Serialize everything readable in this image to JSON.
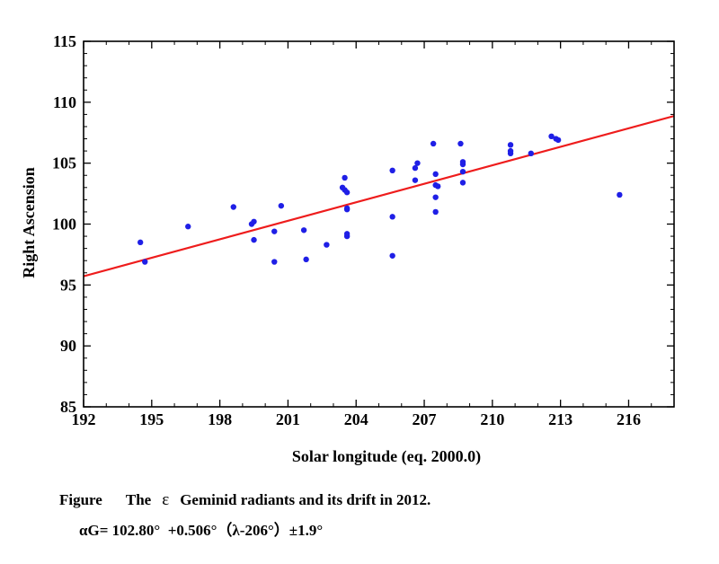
{
  "chart_data": {
    "type": "scatter",
    "title": "",
    "xlabel": "Solar longitude (eq. 2000.0)",
    "ylabel": "Right Ascension",
    "xlim": [
      192,
      218
    ],
    "ylim": [
      85,
      115
    ],
    "xticks": [
      192,
      195,
      198,
      201,
      204,
      207,
      210,
      213,
      216
    ],
    "yticks": [
      85,
      90,
      95,
      100,
      105,
      110,
      115
    ],
    "grid": false,
    "colors": {
      "points": "#1f1fe6",
      "fit": "#ee1c1c"
    },
    "series": [
      {
        "name": "ε Geminid radiants",
        "type": "scatter",
        "points": [
          [
            194.5,
            98.5
          ],
          [
            194.7,
            96.9
          ],
          [
            196.6,
            99.8
          ],
          [
            198.6,
            101.4
          ],
          [
            199.4,
            100.0
          ],
          [
            199.5,
            100.2
          ],
          [
            199.5,
            98.7
          ],
          [
            200.4,
            99.4
          ],
          [
            200.4,
            96.9
          ],
          [
            200.7,
            101.5
          ],
          [
            201.7,
            99.5
          ],
          [
            201.8,
            97.1
          ],
          [
            202.7,
            98.3
          ],
          [
            203.4,
            103.0
          ],
          [
            203.5,
            103.8
          ],
          [
            203.5,
            102.8
          ],
          [
            203.6,
            102.6
          ],
          [
            203.6,
            101.2
          ],
          [
            203.6,
            101.3
          ],
          [
            203.6,
            99.0
          ],
          [
            203.6,
            99.2
          ],
          [
            205.6,
            104.4
          ],
          [
            205.6,
            100.6
          ],
          [
            205.6,
            97.4
          ],
          [
            206.6,
            104.6
          ],
          [
            206.7,
            105.0
          ],
          [
            206.6,
            103.6
          ],
          [
            207.4,
            106.6
          ],
          [
            207.5,
            104.1
          ],
          [
            207.5,
            103.2
          ],
          [
            207.6,
            103.1
          ],
          [
            207.5,
            102.2
          ],
          [
            207.5,
            101.0
          ],
          [
            208.6,
            106.6
          ],
          [
            208.7,
            105.1
          ],
          [
            208.7,
            104.9
          ],
          [
            208.7,
            104.3
          ],
          [
            208.7,
            103.4
          ],
          [
            210.8,
            106.5
          ],
          [
            210.8,
            106.0
          ],
          [
            210.8,
            105.8
          ],
          [
            211.7,
            105.8
          ],
          [
            212.6,
            107.2
          ],
          [
            212.8,
            107.0
          ],
          [
            212.9,
            106.9
          ],
          [
            215.6,
            102.4
          ]
        ]
      },
      {
        "name": "Drift fit",
        "type": "line",
        "points": [
          [
            192,
            95.716
          ],
          [
            218,
            108.872
          ]
        ]
      }
    ]
  },
  "caption": {
    "label": "Figure",
    "text_before": "The",
    "epsilon": "ε",
    "text_after": "Geminid radiants and its drift in 2012.",
    "formula": "αG= 102.80°  +0.506°（λ-206°）±1.9°"
  }
}
